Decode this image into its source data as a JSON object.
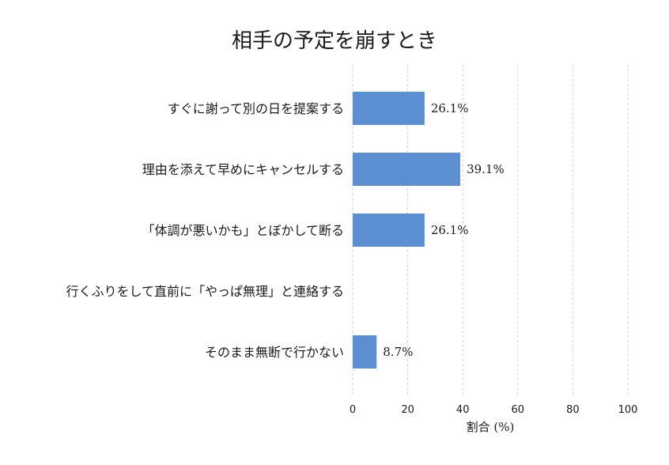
{
  "chart_data": {
    "type": "bar",
    "orientation": "horizontal",
    "title": "相手の予定を崩すとき",
    "xlabel": "割合 (%)",
    "ylabel": "",
    "xlim": [
      0,
      100
    ],
    "xticks": [
      "0",
      "20",
      "40",
      "60",
      "80",
      "100"
    ],
    "grid": "vertical dashed",
    "categories": [
      "すぐに謝って別の日を提案する",
      "理由を添えて早めにキャンセルする",
      "「体調が悪いかも」とぼかして断る",
      "行くふりをして直前に「やっぱ無理」と連絡する",
      "そのまま無断で行かない"
    ],
    "values": [
      26.1,
      39.1,
      26.1,
      0,
      8.7
    ],
    "value_labels": [
      "26.1%",
      "39.1%",
      "26.1%",
      "",
      "8.7%"
    ],
    "bar_color": "#5b8fd1"
  }
}
